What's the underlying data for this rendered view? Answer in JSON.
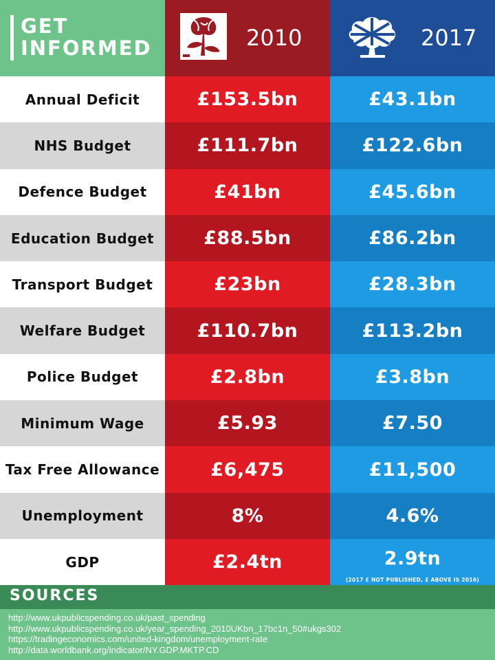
{
  "header": {
    "title_line1": "GET",
    "title_line2": "INFORMED",
    "year_2010": "2010",
    "year_2017": "2017",
    "logo_left": "labour-rose-icon",
    "logo_right": "conservative-tree-icon",
    "colors": {
      "green": "#6dc38a",
      "labour": "#9b1b23",
      "conservative": "#1d4e97"
    }
  },
  "rows": [
    {
      "label": "Annual Deficit",
      "v2010": "£153.5bn",
      "v2017": "£43.1bn"
    },
    {
      "label": "NHS Budget",
      "v2010": "£111.7bn",
      "v2017": "£122.6bn"
    },
    {
      "label": "Defence Budget",
      "v2010": "£41bn",
      "v2017": "£45.6bn"
    },
    {
      "label": "Education Budget",
      "v2010": "£88.5bn",
      "v2017": "£86.2bn"
    },
    {
      "label": "Transport Budget",
      "v2010": "£23bn",
      "v2017": "£28.3bn"
    },
    {
      "label": "Welfare Budget",
      "v2010": "£110.7bn",
      "v2017": "£113.2bn"
    },
    {
      "label": "Police Budget",
      "v2010": "£2.8bn",
      "v2017": "£3.8bn"
    },
    {
      "label": "Minimum Wage",
      "v2010": "£5.93",
      "v2017": "£7.50"
    },
    {
      "label": "Tax Free Allowance",
      "v2010": "£6,475",
      "v2017": "£11,500"
    },
    {
      "label": "Unemployment",
      "v2010": "8%",
      "v2017": "4.6%"
    },
    {
      "label": "GDP",
      "v2010": "£2.4tn",
      "v2017": "2.9tn",
      "note": "(2017 £ NOT PUBLISHED, £ ABOVE IS 2016)"
    }
  ],
  "sources": {
    "title": "SOURCES",
    "links": [
      "http://www.ukpublicspending.co.uk/past_spending",
      "http://www.ukpublicspending.co.uk/year_spending_2010UKbn_17bc1n_50#ukgs302",
      "https://tradingeconomics.com/united-kingdom/unemployment-rate",
      "http://data.worldbank.org/indicator/NY.GDP.MKTP.CD"
    ]
  }
}
